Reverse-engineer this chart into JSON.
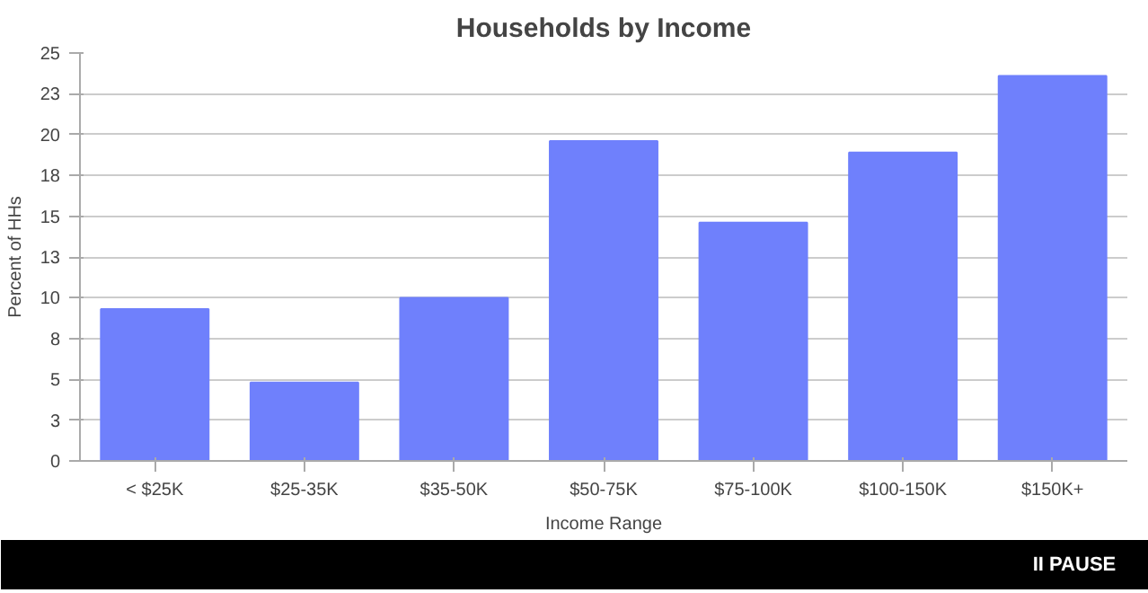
{
  "chart_data": {
    "type": "bar",
    "title": "Households by Income",
    "xlabel": "Income Range",
    "ylabel": "Percent of HHs",
    "categories": [
      "< $25K",
      "$25-35K",
      "$35-50K",
      "$50-75K",
      "$75-100K",
      "$100-150K",
      "$150K+"
    ],
    "values": [
      9.3,
      4.8,
      10.0,
      19.6,
      14.6,
      18.9,
      23.6
    ],
    "color": "#6f80fc",
    "ylim": [
      0,
      25
    ],
    "yticks": [
      0,
      {
        "value": 2.5,
        "label": "3"
      },
      5,
      {
        "value": 7.5,
        "label": "8"
      },
      10,
      {
        "value": 12.5,
        "label": "13"
      },
      15,
      {
        "value": 17.5,
        "label": "18"
      },
      20,
      {
        "value": 22.5,
        "label": "23"
      },
      25
    ],
    "grid": "y",
    "annotations": [
      "II PAUSE"
    ]
  }
}
